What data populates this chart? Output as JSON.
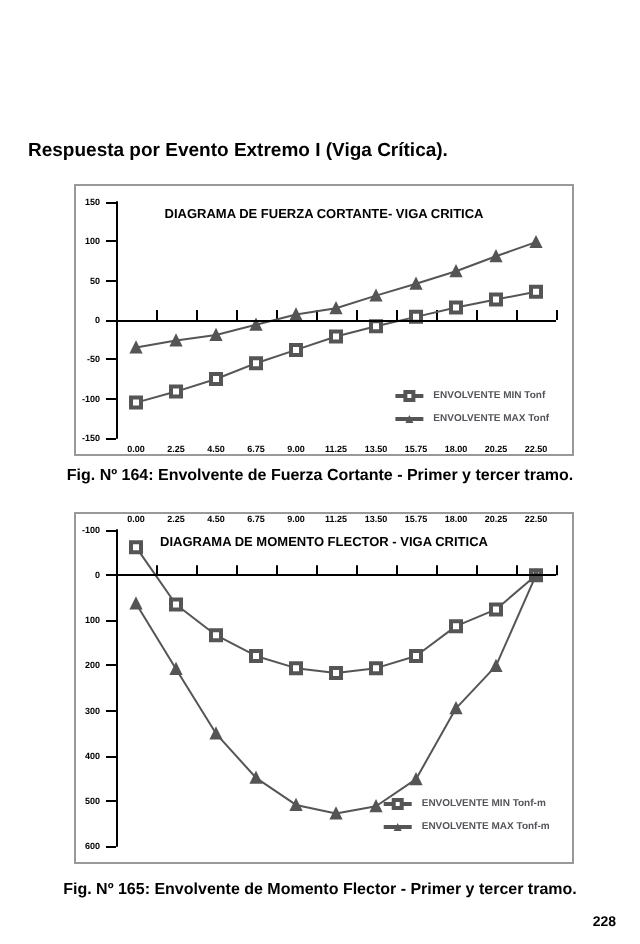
{
  "chart_data": [
    {
      "type": "line",
      "title": "DIAGRAMA DE FUERZA CORTANTE- VIGA CRITICA",
      "annotations": [
        "Respuesta por Evento Extremo I (Viga Crítica).",
        "Fig. Nº 164: Envolvente de Fuerza Cortante - Primer y tercer tramo."
      ],
      "categories": [
        "0.00",
        "2.25",
        "4.50",
        "6.75",
        "9.00",
        "11.25",
        "13.50",
        "15.75",
        "18.00",
        "20.25",
        "22.50"
      ],
      "series": [
        {
          "name": "ENVOLVENTE MIN Tonf",
          "color": "#555555",
          "marker": "square",
          "values": [
            -105,
            -91,
            -75,
            -55,
            -38,
            -21,
            -8,
            4,
            16,
            26,
            36
          ]
        },
        {
          "name": "ENVOLVENTE MAX Tonf",
          "color": "#555555",
          "marker": "triangle",
          "values": [
            -35,
            -26,
            -19,
            -6,
            7,
            15,
            31,
            46,
            62,
            81,
            99
          ]
        }
      ],
      "ylim": [
        -150,
        150
      ],
      "yticks": [
        -150,
        -100,
        -50,
        0,
        50,
        100,
        150
      ],
      "grid": false,
      "legend": "bottom right",
      "ref_lines": [
        {
          "axis": "y",
          "value": 0,
          "color": "#000000"
        }
      ]
    },
    {
      "type": "line",
      "title": "DIAGRAMA DE MOMENTO FLECTOR - VIGA CRITICA",
      "annotations": [
        "Fig. Nº 165: Envolvente de Momento Flector - Primer y tercer tramo.",
        "228"
      ],
      "categories": [
        "0.00",
        "2.25",
        "4.50",
        "6.75",
        "9.00",
        "11.25",
        "13.50",
        "15.75",
        "18.00",
        "20.25",
        "22.50"
      ],
      "series": [
        {
          "name": "ENVOLVENTE MIN Tonf-m",
          "color": "#555555",
          "marker": "square",
          "values": [
            -62,
            65,
            133,
            179,
            206,
            217,
            206,
            179,
            113,
            76,
            0
          ]
        },
        {
          "name": "ENVOLVENTE MAX Tonf-m",
          "color": "#555555",
          "marker": "triangle",
          "values": [
            63,
            208,
            351,
            449,
            509,
            528,
            512,
            452,
            295,
            201,
            0
          ]
        }
      ],
      "ylim": [
        600,
        -100
      ],
      "yticks": [
        -100,
        0,
        100,
        200,
        300,
        400,
        500,
        600
      ],
      "grid": false,
      "legend": "bottom right",
      "ref_lines": [
        {
          "axis": "y",
          "value": 0,
          "color": "#000000"
        }
      ]
    }
  ]
}
